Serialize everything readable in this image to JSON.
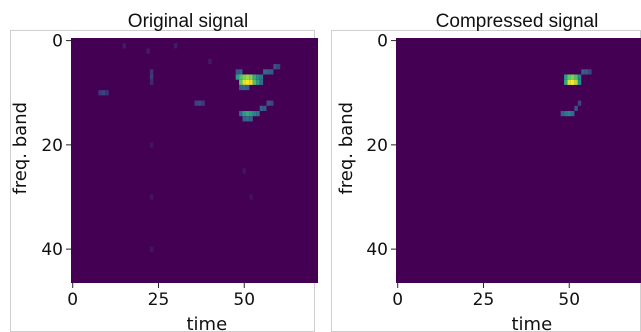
{
  "chart_data": [
    {
      "type": "heatmap",
      "title": "Original signal",
      "xlabel": "time",
      "ylabel": "freq. band",
      "xlim": [
        -0.5,
        71.5
      ],
      "ylim": [
        46.5,
        -0.5
      ],
      "x_ticks": [
        0,
        25,
        50
      ],
      "y_ticks": [
        0,
        20,
        40
      ],
      "colormap": "viridis",
      "background_value": 0.0,
      "cells": [
        [
          48,
          7,
          0.55
        ],
        [
          49,
          7,
          0.7
        ],
        [
          50,
          7,
          0.8
        ],
        [
          51,
          7,
          0.85
        ],
        [
          52,
          7,
          0.8
        ],
        [
          53,
          7,
          0.6
        ],
        [
          54,
          7,
          0.5
        ],
        [
          55,
          7,
          0.4
        ],
        [
          49,
          8,
          0.75
        ],
        [
          50,
          8,
          0.95
        ],
        [
          51,
          8,
          1.0
        ],
        [
          52,
          8,
          0.95
        ],
        [
          53,
          8,
          0.7
        ],
        [
          54,
          8,
          0.55
        ],
        [
          55,
          8,
          0.35
        ],
        [
          56,
          6,
          0.35
        ],
        [
          57,
          6,
          0.3
        ],
        [
          58,
          6,
          0.28
        ],
        [
          59,
          5,
          0.25
        ],
        [
          60,
          5,
          0.2
        ],
        [
          48,
          6,
          0.25
        ],
        [
          49,
          6,
          0.3
        ],
        [
          49,
          9,
          0.3
        ],
        [
          50,
          9,
          0.35
        ],
        [
          51,
          9,
          0.3
        ],
        [
          49,
          14,
          0.35
        ],
        [
          50,
          14,
          0.55
        ],
        [
          51,
          14,
          0.6
        ],
        [
          52,
          14,
          0.55
        ],
        [
          53,
          14,
          0.45
        ],
        [
          54,
          14,
          0.4
        ],
        [
          50,
          15,
          0.3
        ],
        [
          51,
          15,
          0.35
        ],
        [
          52,
          15,
          0.3
        ],
        [
          55,
          13,
          0.3
        ],
        [
          56,
          13,
          0.28
        ],
        [
          57,
          12,
          0.25
        ],
        [
          58,
          12,
          0.22
        ],
        [
          8,
          10,
          0.18
        ],
        [
          9,
          10,
          0.2
        ],
        [
          10,
          10,
          0.15
        ],
        [
          36,
          12,
          0.2
        ],
        [
          37,
          12,
          0.22
        ],
        [
          38,
          12,
          0.18
        ],
        [
          23,
          6,
          0.15
        ],
        [
          23,
          7,
          0.18
        ],
        [
          23,
          8,
          0.12
        ],
        [
          15,
          1,
          0.08
        ],
        [
          22,
          2,
          0.08
        ],
        [
          30,
          1,
          0.08
        ],
        [
          40,
          4,
          0.08
        ],
        [
          23,
          20,
          0.06
        ],
        [
          23,
          30,
          0.06
        ],
        [
          23,
          40,
          0.06
        ],
        [
          50,
          25,
          0.06
        ],
        [
          52,
          30,
          0.05
        ]
      ]
    },
    {
      "type": "heatmap",
      "title": "Compressed signal",
      "xlabel": "time",
      "ylabel": "freq. band",
      "xlim": [
        -0.5,
        71.5
      ],
      "ylim": [
        46.5,
        -0.5
      ],
      "x_ticks": [
        0,
        25,
        50
      ],
      "y_ticks": [
        0,
        20,
        40
      ],
      "colormap": "viridis",
      "background_value": 0.0,
      "cells": [
        [
          49,
          7,
          0.55
        ],
        [
          50,
          7,
          0.75
        ],
        [
          51,
          7,
          0.8
        ],
        [
          52,
          7,
          0.7
        ],
        [
          53,
          7,
          0.45
        ],
        [
          49,
          8,
          0.6
        ],
        [
          50,
          8,
          0.95
        ],
        [
          51,
          8,
          1.0
        ],
        [
          52,
          8,
          0.9
        ],
        [
          53,
          8,
          0.5
        ],
        [
          54,
          6,
          0.3
        ],
        [
          55,
          6,
          0.28
        ],
        [
          56,
          6,
          0.22
        ],
        [
          48,
          14,
          0.3
        ],
        [
          49,
          14,
          0.4
        ],
        [
          50,
          14,
          0.45
        ],
        [
          51,
          14,
          0.35
        ],
        [
          52,
          13,
          0.25
        ],
        [
          53,
          12,
          0.2
        ]
      ]
    }
  ]
}
